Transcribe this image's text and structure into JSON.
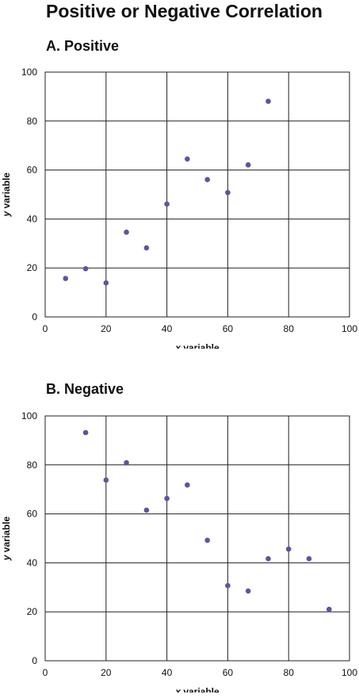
{
  "title": "Positive or Negative Correlation",
  "colors": {
    "point": "#5b55a0",
    "grid": "#222222"
  },
  "chart_data": [
    {
      "type": "scatter",
      "title": "A.  Positive",
      "xlabel_italic": "x",
      "xlabel_rest": " variable",
      "ylabel_italic": "y",
      "ylabel_rest": " variable",
      "xlim": [
        0,
        100
      ],
      "ylim": [
        0,
        100
      ],
      "xticks": [
        0,
        20,
        40,
        60,
        80,
        100
      ],
      "yticks": [
        0,
        20,
        40,
        60,
        80,
        100
      ],
      "grid": true,
      "points": [
        {
          "x": 6.7,
          "y": 15.7
        },
        {
          "x": 13.3,
          "y": 19.7
        },
        {
          "x": 20,
          "y": 13.9
        },
        {
          "x": 26.7,
          "y": 34.6
        },
        {
          "x": 33.3,
          "y": 28.2
        },
        {
          "x": 40,
          "y": 46.1
        },
        {
          "x": 46.7,
          "y": 64.5
        },
        {
          "x": 53.3,
          "y": 56.1
        },
        {
          "x": 60,
          "y": 50.8
        },
        {
          "x": 66.7,
          "y": 62.1
        },
        {
          "x": 73.3,
          "y": 88.1
        }
      ]
    },
    {
      "type": "scatter",
      "title": "B.  Negative",
      "xlabel_italic": "x",
      "xlabel_rest": " variable",
      "ylabel_italic": "y",
      "ylabel_rest": " variable",
      "xlim": [
        0,
        100
      ],
      "ylim": [
        0,
        100
      ],
      "xticks": [
        0,
        20,
        40,
        60,
        80,
        100
      ],
      "yticks": [
        0,
        20,
        40,
        60,
        80,
        100
      ],
      "grid": true,
      "points": [
        {
          "x": 13.3,
          "y": 93.2
        },
        {
          "x": 20,
          "y": 73.8
        },
        {
          "x": 26.7,
          "y": 80.9
        },
        {
          "x": 33.3,
          "y": 61.5
        },
        {
          "x": 40,
          "y": 66.3
        },
        {
          "x": 46.7,
          "y": 71.8
        },
        {
          "x": 53.3,
          "y": 49.2
        },
        {
          "x": 60,
          "y": 30.7
        },
        {
          "x": 66.7,
          "y": 28.5
        },
        {
          "x": 73.3,
          "y": 41.7
        },
        {
          "x": 80,
          "y": 45.6
        },
        {
          "x": 86.7,
          "y": 41.7
        },
        {
          "x": 93.3,
          "y": 21.0
        }
      ]
    }
  ]
}
